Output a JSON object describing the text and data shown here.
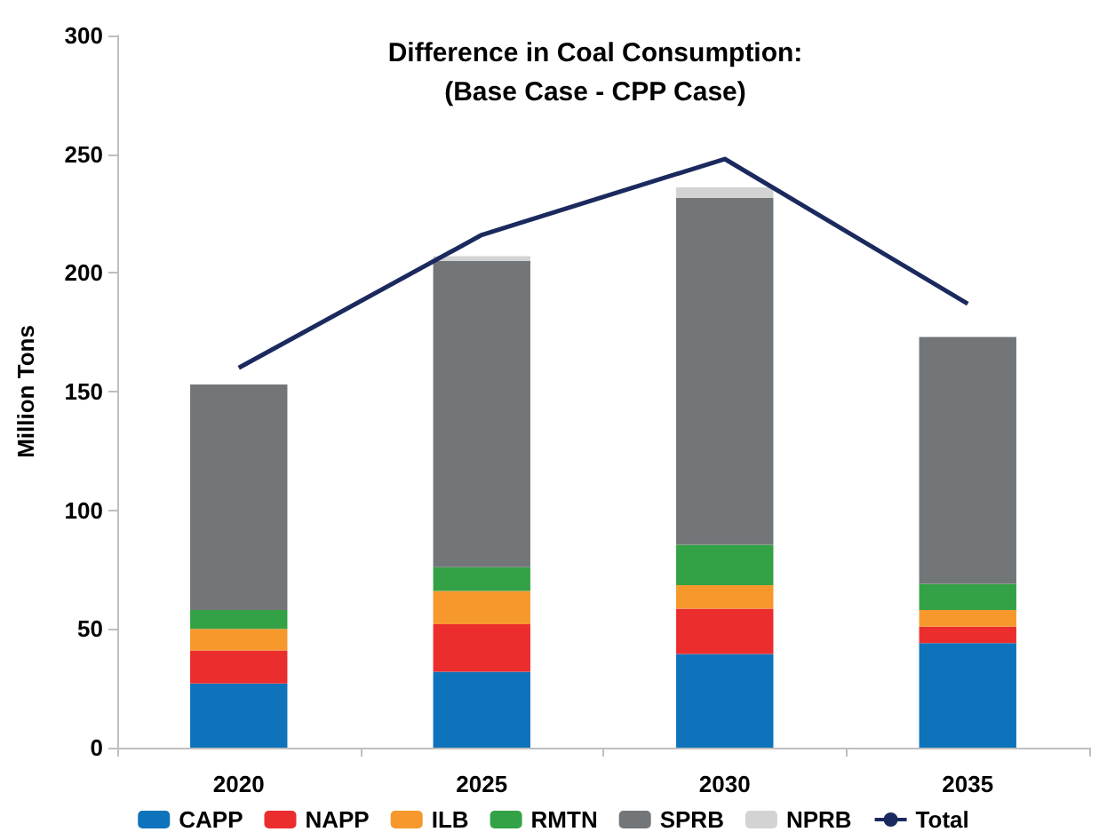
{
  "chart_data": {
    "type": "bar",
    "title": "Difference in Coal Consumption:\n(Base Case - CPP Case)",
    "ylabel": "Million Tons",
    "categories": [
      "2020",
      "2025",
      "2030",
      "2035"
    ],
    "stacked": true,
    "series": [
      {
        "name": "CAPP",
        "color": "#0e73ba",
        "values": [
          27,
          32,
          39.5,
          44
        ]
      },
      {
        "name": "NAPP",
        "color": "#ec2d2e",
        "values": [
          14,
          20,
          19,
          7
        ]
      },
      {
        "name": "ILB",
        "color": "#f7982d",
        "values": [
          9,
          14,
          10,
          7
        ]
      },
      {
        "name": "RMTN",
        "color": "#33a246",
        "values": [
          8,
          10,
          17,
          11
        ]
      },
      {
        "name": "SPRB",
        "color": "#737679",
        "values": [
          95,
          129,
          146,
          104
        ]
      },
      {
        "name": "NPRB",
        "color": "#d3d3d3",
        "values": [
          null,
          2,
          4.5,
          null
        ]
      },
      {
        "name": "Total",
        "type": "line",
        "color": "#1b2a5e",
        "values": [
          160,
          216,
          248,
          187
        ]
      }
    ],
    "ylim": [
      0,
      300
    ],
    "yticks": [
      0,
      50,
      100,
      150,
      200,
      250,
      300
    ],
    "grid": false,
    "legend": "bottom",
    "marker": "none",
    "line_style": "solid"
  }
}
